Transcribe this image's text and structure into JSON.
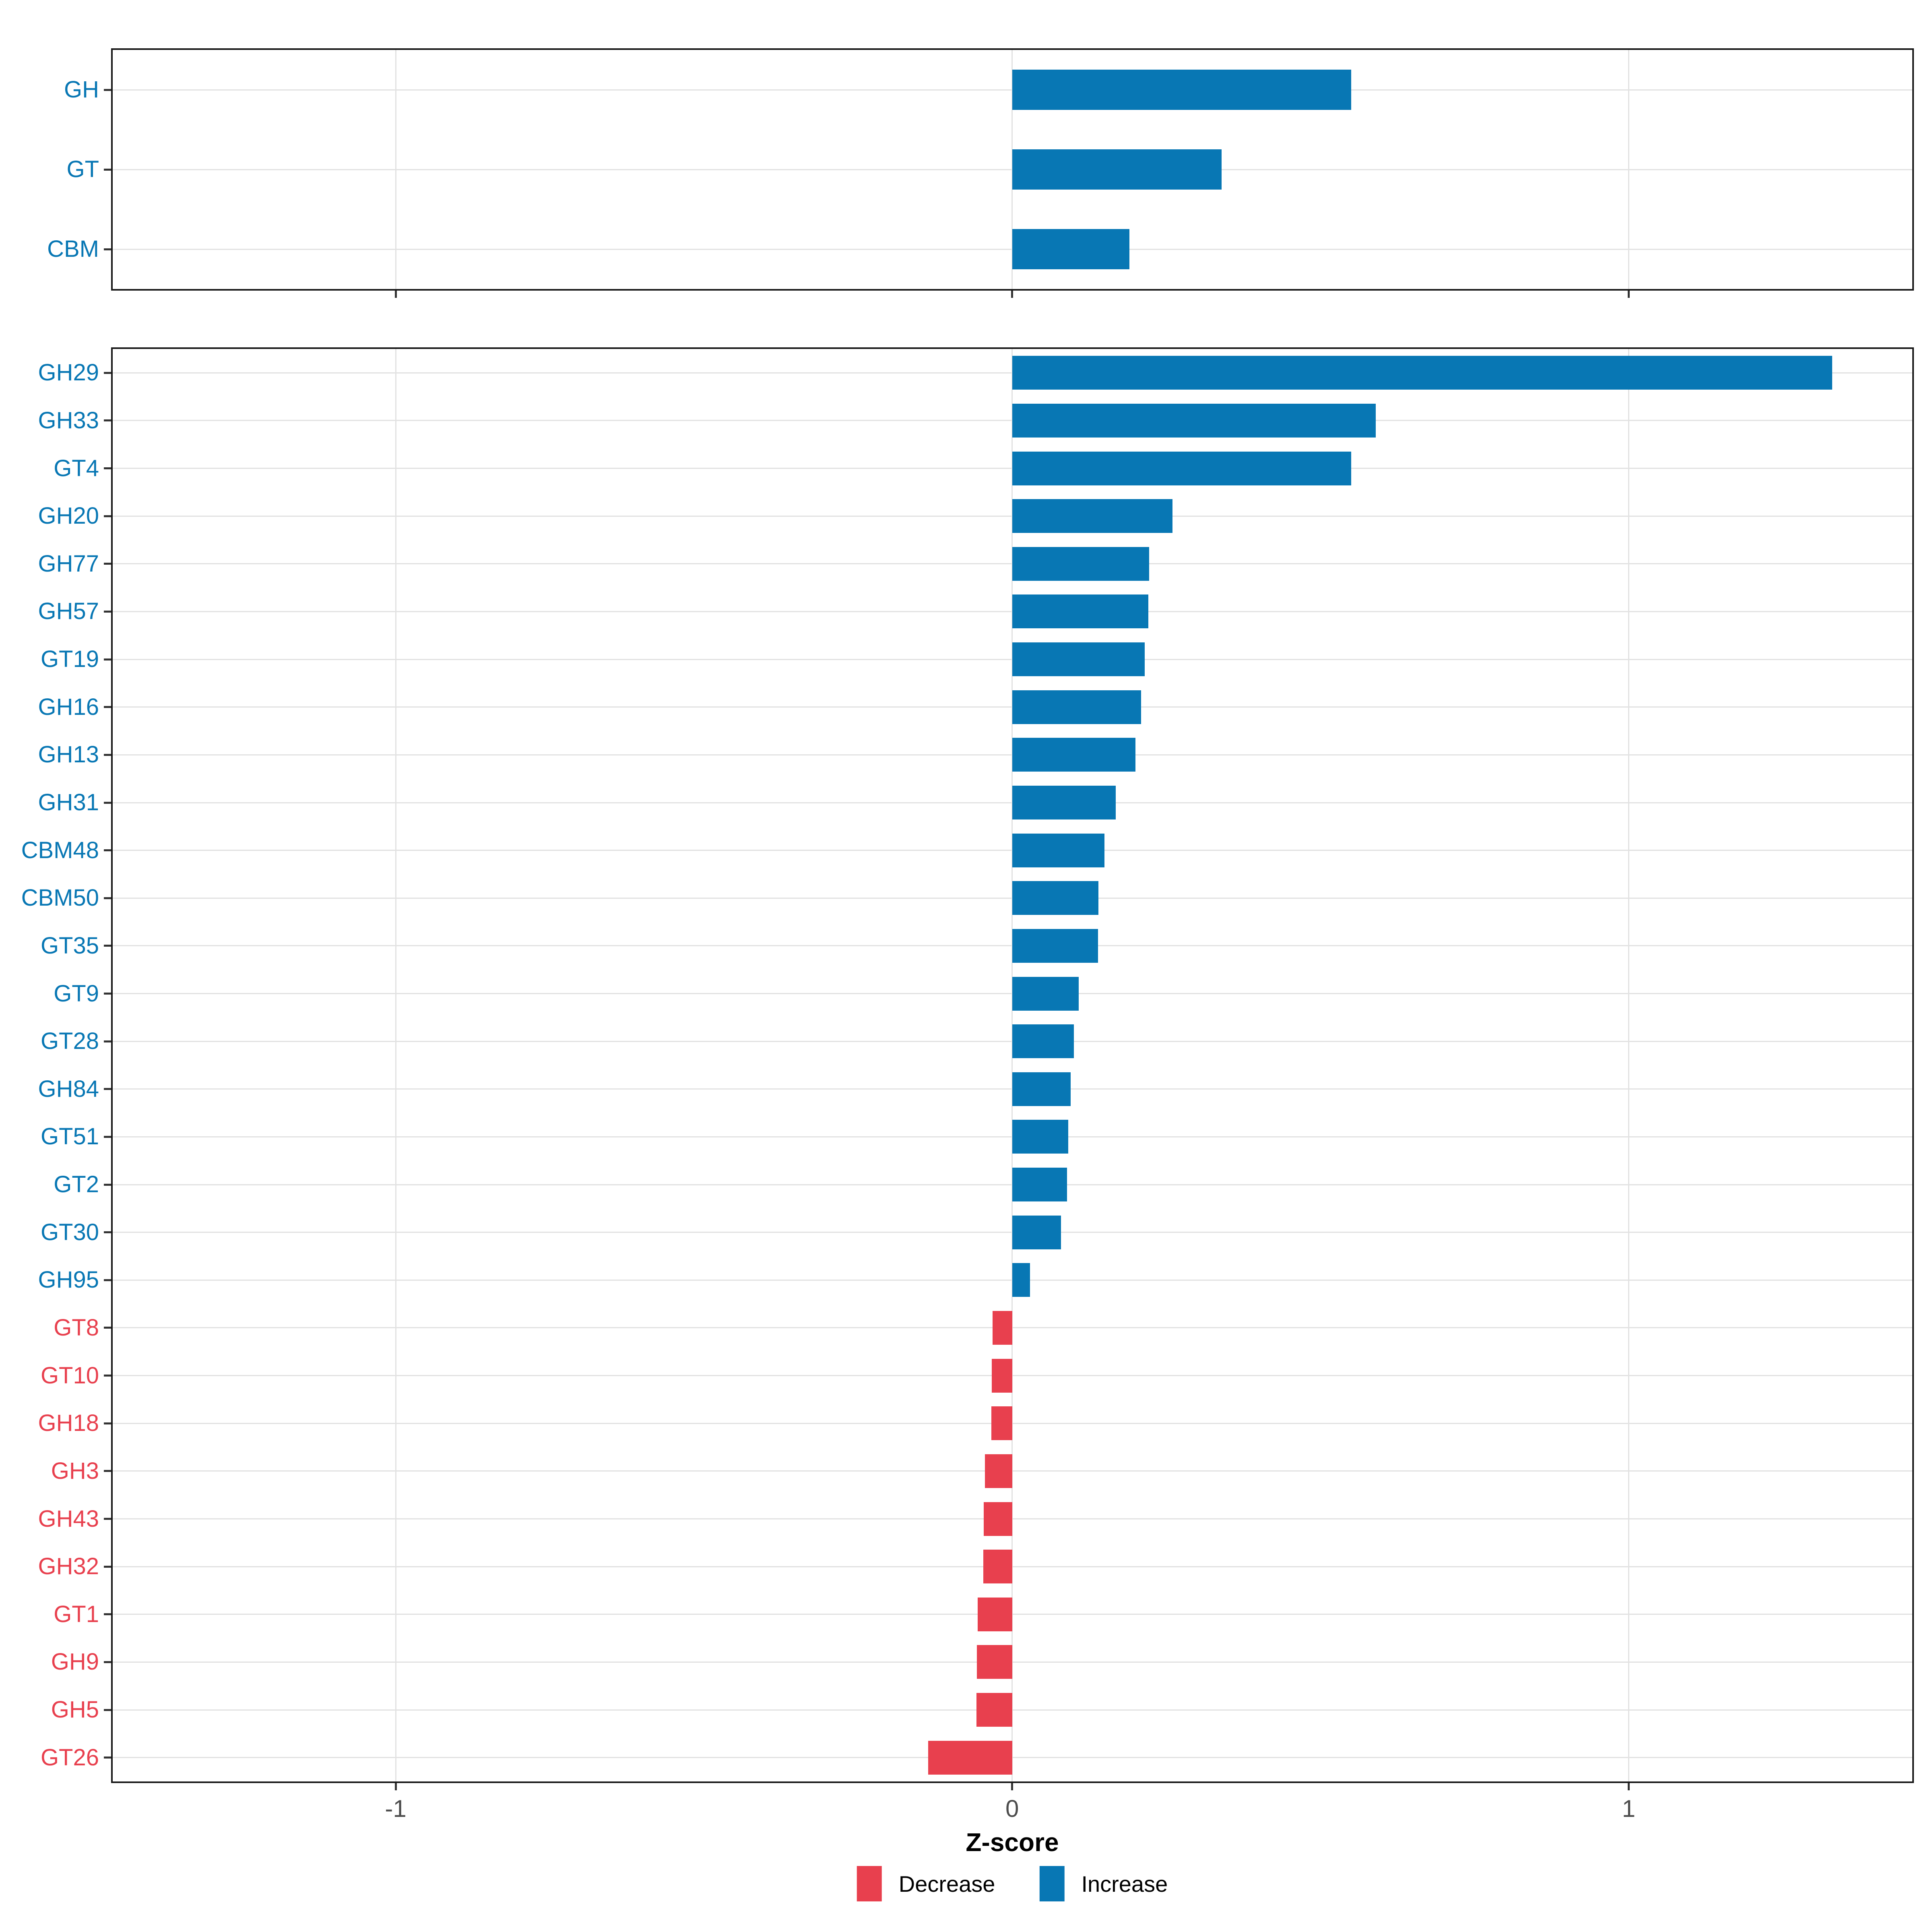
{
  "chart_data": {
    "type": "bar",
    "orientation": "horizontal",
    "title": "",
    "xlabel": "Z-score",
    "x_ticks": [
      -1,
      0,
      1
    ],
    "x_tick_labels": [
      "-1",
      "0",
      "1"
    ],
    "xlim": [
      -1.459,
      1.46
    ],
    "grid": true,
    "legend_position": "bottom",
    "style": {
      "increase_color": "#0877B4",
      "decrease_color": "#E8404E",
      "grid_color": "#E2E2E2",
      "panel_border_color": "#181818",
      "tick_color": "#333333",
      "tick_label_color": "#4D4D4D",
      "background": "#FFFFFF"
    },
    "legend": [
      {
        "label": "Decrease",
        "direction": "decrease"
      },
      {
        "label": "Increase",
        "direction": "increase"
      }
    ],
    "panels": [
      {
        "name": "categories-summary",
        "rows": [
          {
            "label": "GH",
            "value": 0.55,
            "direction": "increase"
          },
          {
            "label": "GT",
            "value": 0.34,
            "direction": "increase"
          },
          {
            "label": "CBM",
            "value": 0.19,
            "direction": "increase"
          }
        ]
      },
      {
        "name": "cazyme-families",
        "rows": [
          {
            "label": "GH29",
            "value": 1.33,
            "direction": "increase"
          },
          {
            "label": "GH33",
            "value": 0.59,
            "direction": "increase"
          },
          {
            "label": "GT4",
            "value": 0.55,
            "direction": "increase"
          },
          {
            "label": "GH20",
            "value": 0.26,
            "direction": "increase"
          },
          {
            "label": "GH77",
            "value": 0.222,
            "direction": "increase"
          },
          {
            "label": "GH57",
            "value": 0.221,
            "direction": "increase"
          },
          {
            "label": "GT19",
            "value": 0.215,
            "direction": "increase"
          },
          {
            "label": "GH16",
            "value": 0.209,
            "direction": "increase"
          },
          {
            "label": "GH13",
            "value": 0.2,
            "direction": "increase"
          },
          {
            "label": "GH31",
            "value": 0.168,
            "direction": "increase"
          },
          {
            "label": "CBM48",
            "value": 0.15,
            "direction": "increase"
          },
          {
            "label": "CBM50",
            "value": 0.14,
            "direction": "increase"
          },
          {
            "label": "GT35",
            "value": 0.139,
            "direction": "increase"
          },
          {
            "label": "GT9",
            "value": 0.108,
            "direction": "increase"
          },
          {
            "label": "GT28",
            "value": 0.1,
            "direction": "increase"
          },
          {
            "label": "GH84",
            "value": 0.095,
            "direction": "increase"
          },
          {
            "label": "GT51",
            "value": 0.091,
            "direction": "increase"
          },
          {
            "label": "GT2",
            "value": 0.089,
            "direction": "increase"
          },
          {
            "label": "GT30",
            "value": 0.079,
            "direction": "increase"
          },
          {
            "label": "GH95",
            "value": 0.029,
            "direction": "increase"
          },
          {
            "label": "GT8",
            "value": -0.032,
            "direction": "decrease"
          },
          {
            "label": "GT10",
            "value": -0.033,
            "direction": "decrease"
          },
          {
            "label": "GH18",
            "value": -0.034,
            "direction": "decrease"
          },
          {
            "label": "GH3",
            "value": -0.044,
            "direction": "decrease"
          },
          {
            "label": "GH43",
            "value": -0.046,
            "direction": "decrease"
          },
          {
            "label": "GH32",
            "value": -0.047,
            "direction": "decrease"
          },
          {
            "label": "GT1",
            "value": -0.056,
            "direction": "decrease"
          },
          {
            "label": "GH9",
            "value": -0.057,
            "direction": "decrease"
          },
          {
            "label": "GH5",
            "value": -0.058,
            "direction": "decrease"
          },
          {
            "label": "GT26",
            "value": -0.136,
            "direction": "decrease"
          }
        ]
      }
    ]
  }
}
